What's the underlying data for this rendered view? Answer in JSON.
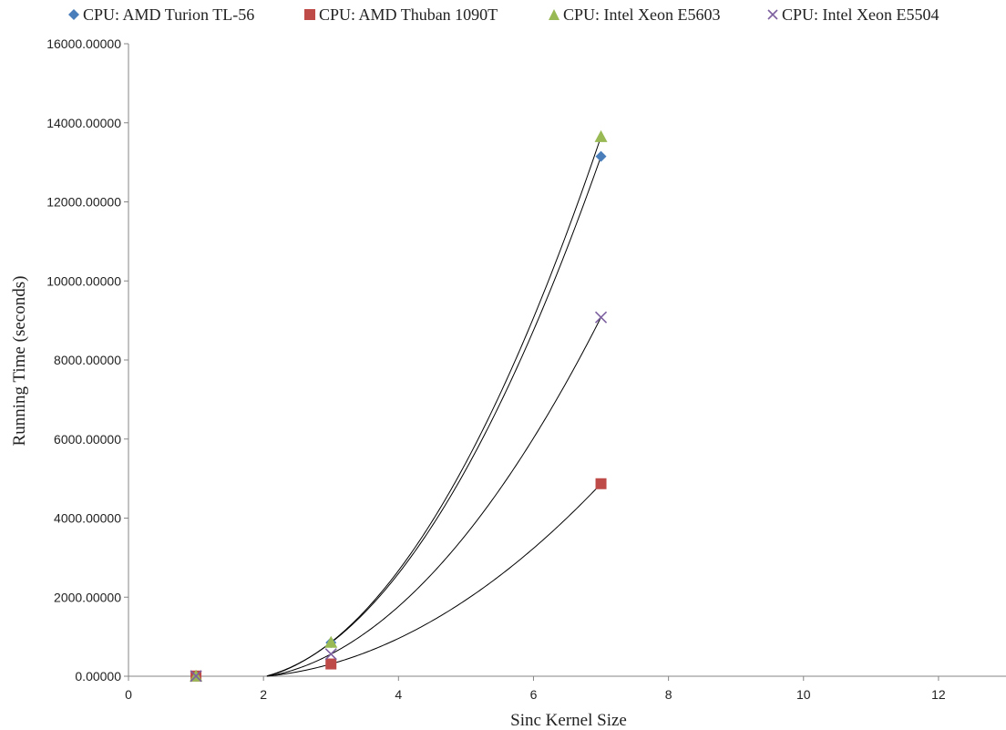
{
  "chart_data": {
    "type": "scatter",
    "title": "",
    "xlabel": "Sinc Kernel Size",
    "ylabel": "Running Time (seconds)",
    "xlim": [
      0,
      13
    ],
    "ylim": [
      0,
      16000
    ],
    "x_ticks": [
      "0",
      "2",
      "4",
      "6",
      "8",
      "10",
      "12"
    ],
    "y_ticks": [
      "0.00000",
      "2000.00000",
      "4000.00000",
      "6000.00000",
      "8000.00000",
      "10000.00000",
      "12000.00000",
      "14000.00000",
      "16000.00000"
    ],
    "grid": false,
    "legend_position": "top",
    "trendlines": "polynomial",
    "series": [
      {
        "name": "CPU: AMD Turion TL-56",
        "marker": "diamond",
        "color": "#4a7ebb",
        "points": [
          {
            "x": 1,
            "y": 5
          },
          {
            "x": 3,
            "y": 850
          },
          {
            "x": 7,
            "y": 13150
          }
        ]
      },
      {
        "name": "CPU: AMD Thuban 1090T",
        "marker": "square",
        "color": "#be4b48",
        "points": [
          {
            "x": 1,
            "y": 5
          },
          {
            "x": 3,
            "y": 310
          },
          {
            "x": 7,
            "y": 4870
          }
        ]
      },
      {
        "name": "CPU: Intel Xeon E5603",
        "marker": "triangle",
        "color": "#98b954",
        "points": [
          {
            "x": 1,
            "y": 5
          },
          {
            "x": 3,
            "y": 860
          },
          {
            "x": 7,
            "y": 13650
          }
        ]
      },
      {
        "name": "CPU: Intel Xeon E5504",
        "marker": "x",
        "color": "#7d60a0",
        "points": [
          {
            "x": 1,
            "y": 5
          },
          {
            "x": 3,
            "y": 560
          },
          {
            "x": 7,
            "y": 9080
          }
        ]
      }
    ]
  }
}
